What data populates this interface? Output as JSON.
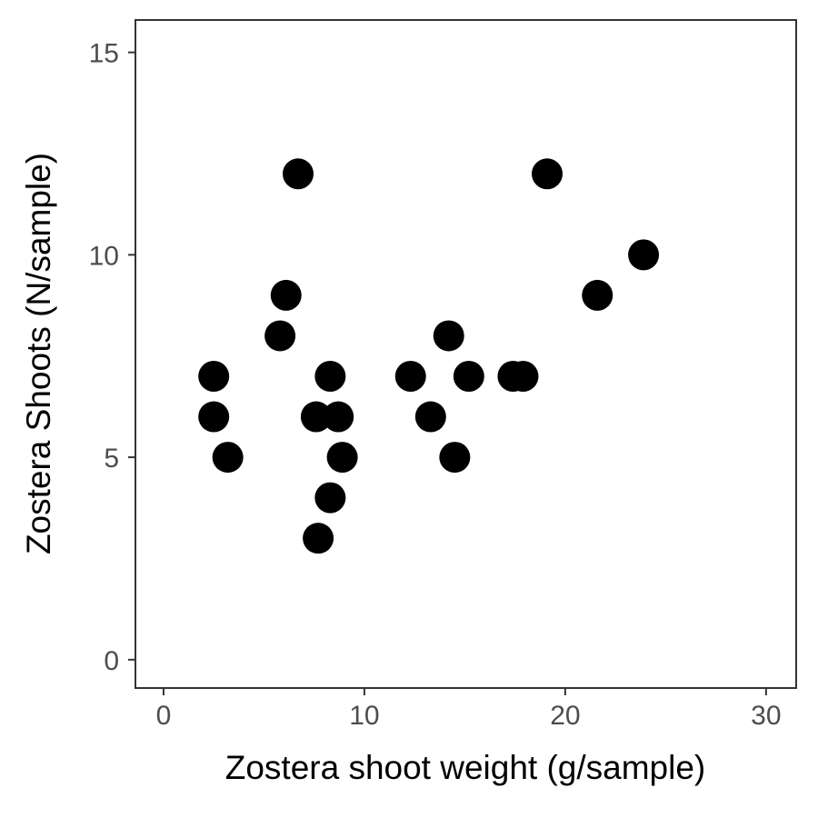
{
  "chart_data": {
    "type": "scatter",
    "title": "",
    "xlabel": "Zostera shoot weight (g/sample)",
    "ylabel": "Zostera Shoots (N/sample)",
    "xlim": [
      -1.4,
      31.5
    ],
    "ylim": [
      -0.7,
      15.8
    ],
    "x_ticks": [
      0,
      10,
      20,
      30
    ],
    "y_ticks": [
      0,
      5,
      10,
      15
    ],
    "x_tick_labels": [
      "0",
      "10",
      "20",
      "30"
    ],
    "y_tick_labels": [
      "0",
      "5",
      "10",
      "15"
    ],
    "grid": false,
    "point_color": "#000000",
    "series": [
      {
        "points": [
          {
            "x": 2.5,
            "y": 7
          },
          {
            "x": 2.5,
            "y": 6
          },
          {
            "x": 3.2,
            "y": 5
          },
          {
            "x": 5.8,
            "y": 8
          },
          {
            "x": 6.1,
            "y": 9
          },
          {
            "x": 6.7,
            "y": 12
          },
          {
            "x": 7.6,
            "y": 6
          },
          {
            "x": 7.7,
            "y": 3
          },
          {
            "x": 8.3,
            "y": 7
          },
          {
            "x": 8.3,
            "y": 4
          },
          {
            "x": 8.7,
            "y": 6
          },
          {
            "x": 8.9,
            "y": 5
          },
          {
            "x": 12.3,
            "y": 7
          },
          {
            "x": 13.3,
            "y": 6
          },
          {
            "x": 14.2,
            "y": 8
          },
          {
            "x": 14.5,
            "y": 5
          },
          {
            "x": 15.2,
            "y": 7
          },
          {
            "x": 17.4,
            "y": 7
          },
          {
            "x": 17.9,
            "y": 7
          },
          {
            "x": 19.1,
            "y": 12
          },
          {
            "x": 21.6,
            "y": 9
          },
          {
            "x": 23.9,
            "y": 10
          }
        ]
      }
    ]
  }
}
